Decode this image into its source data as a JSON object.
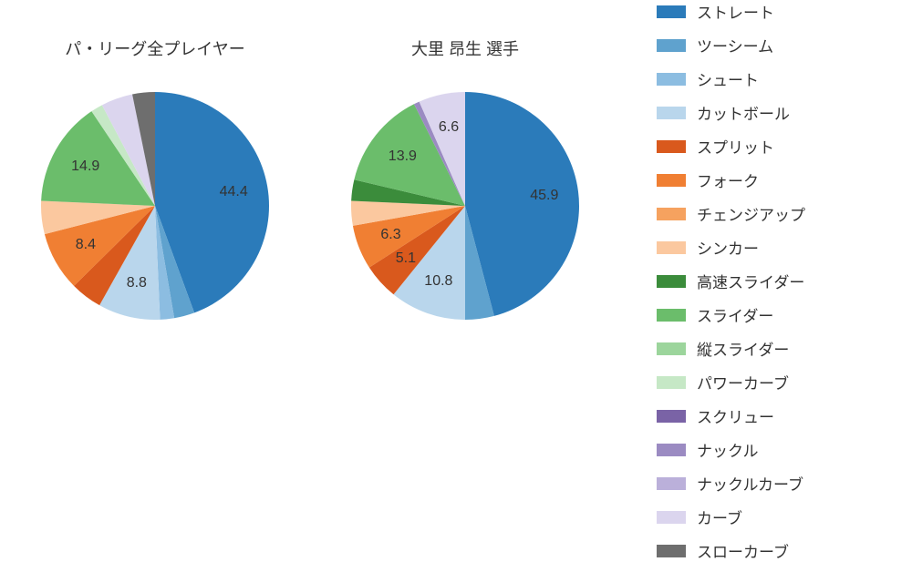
{
  "background_color": "#ffffff",
  "text_color": "#333333",
  "title_fontsize": 18,
  "label_fontsize": 16,
  "legend_fontsize": 17,
  "pie_radius": 125,
  "label_offset": 0.7,
  "label_threshold": 5.0,
  "categories": [
    {
      "name": "ストレート",
      "color": "#2b7bba"
    },
    {
      "name": "ツーシーム",
      "color": "#5fa2ce"
    },
    {
      "name": "シュート",
      "color": "#8cbde1"
    },
    {
      "name": "カットボール",
      "color": "#b9d6ec"
    },
    {
      "name": "スプリット",
      "color": "#d9591d"
    },
    {
      "name": "フォーク",
      "color": "#f07f33"
    },
    {
      "name": "チェンジアップ",
      "color": "#f6a25f"
    },
    {
      "name": "シンカー",
      "color": "#fbc89f"
    },
    {
      "name": "高速スライダー",
      "color": "#3b8c3b"
    },
    {
      "name": "スライダー",
      "color": "#6bbd6b"
    },
    {
      "name": "縦スライダー",
      "color": "#9cd59c"
    },
    {
      "name": "パワーカーブ",
      "color": "#c6e8c6"
    },
    {
      "name": "スクリュー",
      "color": "#7a63a6"
    },
    {
      "name": "ナックル",
      "color": "#9b8bc2"
    },
    {
      "name": "ナックルカーブ",
      "color": "#bbb0da"
    },
    {
      "name": "カーブ",
      "color": "#dbd5ee"
    },
    {
      "name": "スローカーブ",
      "color": "#6e6e6e"
    }
  ],
  "charts": [
    {
      "title": "パ・リーグ全プレイヤー",
      "slices": [
        {
          "cat": 0,
          "value": 44.4
        },
        {
          "cat": 1,
          "value": 2.9
        },
        {
          "cat": 2,
          "value": 2.0
        },
        {
          "cat": 3,
          "value": 8.8
        },
        {
          "cat": 4,
          "value": 4.5
        },
        {
          "cat": 5,
          "value": 8.4
        },
        {
          "cat": 7,
          "value": 4.7
        },
        {
          "cat": 9,
          "value": 14.9
        },
        {
          "cat": 11,
          "value": 1.7
        },
        {
          "cat": 15,
          "value": 4.5
        },
        {
          "cat": 16,
          "value": 3.2
        }
      ]
    },
    {
      "title": "大里 昂生  選手",
      "slices": [
        {
          "cat": 0,
          "value": 45.9
        },
        {
          "cat": 1,
          "value": 4.1
        },
        {
          "cat": 3,
          "value": 10.8
        },
        {
          "cat": 4,
          "value": 5.1
        },
        {
          "cat": 5,
          "value": 6.3
        },
        {
          "cat": 7,
          "value": 3.5
        },
        {
          "cat": 8,
          "value": 3.0
        },
        {
          "cat": 9,
          "value": 13.9
        },
        {
          "cat": 13,
          "value": 0.8
        },
        {
          "cat": 15,
          "value": 6.6
        }
      ]
    }
  ]
}
